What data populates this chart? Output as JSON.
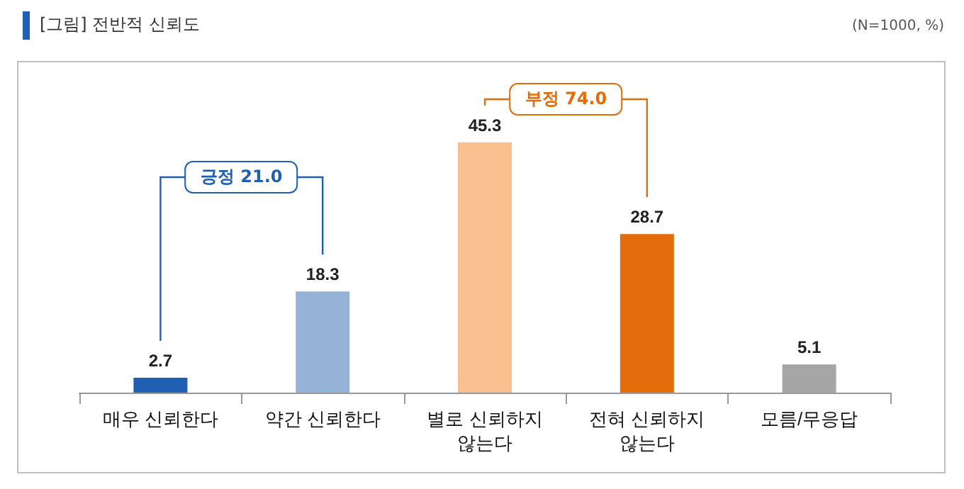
{
  "chart_data": {
    "type": "bar",
    "title": "[그림] 전반적 신뢰도",
    "annotations": [
      "(N=1000, %)",
      "긍정 21.0",
      "부정 74.0"
    ],
    "categories": [
      "매우 신뢰한다",
      "약간 신뢰한다",
      "별로 신뢰하지 않는다",
      "전혀 신뢰하지 않는다",
      "모름/무응답"
    ],
    "values": [
      2.7,
      18.3,
      45.3,
      28.7,
      5.1
    ],
    "colors": [
      "#1f5fb4",
      "#95b3d7",
      "#fac090",
      "#e46c0a",
      "#a6a6a6"
    ],
    "data_labels": true
  }
}
